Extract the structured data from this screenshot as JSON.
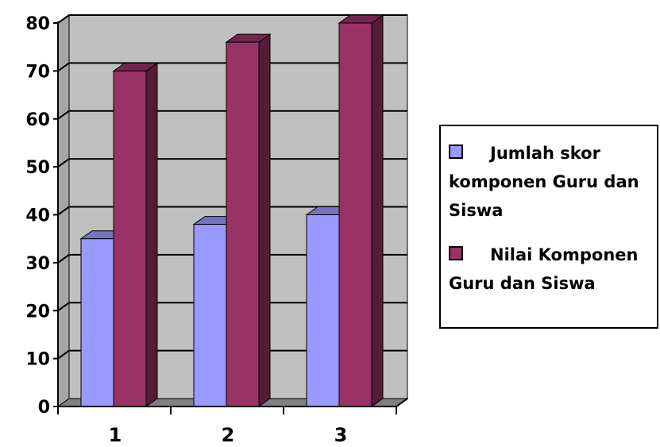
{
  "chart_data": {
    "type": "bar",
    "categories": [
      "1",
      "2",
      "3"
    ],
    "series": [
      {
        "name": "Jumlah skor komponen Guru dan Siswa",
        "values": [
          35,
          38,
          40
        ],
        "color": "#9999ff"
      },
      {
        "name": "Nilai Komponen Guru dan Siswa",
        "values": [
          70,
          76,
          80
        ],
        "color": "#993366"
      }
    ],
    "yticks": [
      "0",
      "10",
      "20",
      "30",
      "40",
      "50",
      "60",
      "70",
      "80"
    ],
    "ylim": [
      0,
      80
    ],
    "grid": true,
    "legend": "right",
    "three_d": true,
    "wall_color": "#c0c0c0"
  }
}
